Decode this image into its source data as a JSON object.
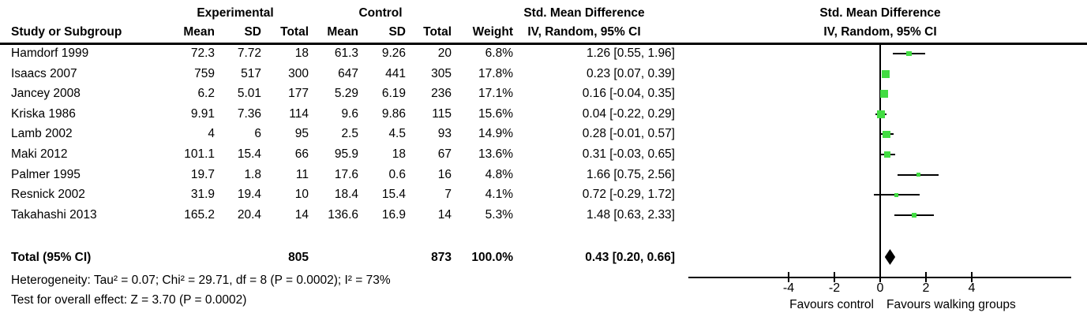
{
  "table": {
    "group_headers": {
      "experimental": "Experimental",
      "control": "Control",
      "smd_left": "Std. Mean Difference",
      "smd_right": "Std. Mean Difference"
    },
    "col_headers": {
      "study": "Study or Subgroup",
      "mean": "Mean",
      "sd": "SD",
      "total": "Total",
      "mean2": "Mean",
      "sd2": "SD",
      "total2": "Total",
      "weight": "Weight",
      "ci_left": "IV, Random, 95% CI",
      "ci_right": "IV, Random, 95% CI"
    }
  },
  "chart_data": {
    "type": "forest",
    "effect_measure": "Std. Mean Difference",
    "method": "IV, Random, 95% CI",
    "marker_color": "#42DC42",
    "axis": {
      "ticks": [
        -4,
        -2,
        0,
        2,
        4
      ],
      "xlim": [
        -8.4,
        8.3
      ],
      "favours_left": "Favours control",
      "favours_right": "Favours walking groups"
    },
    "studies": [
      {
        "name": "Hamdorf 1999",
        "exp_mean": "72.3",
        "exp_sd": "7.72",
        "exp_total": "18",
        "ctl_mean": "61.3",
        "ctl_sd": "9.26",
        "ctl_total": "20",
        "weight": "6.8%",
        "ci": "1.26 [0.55, 1.96]",
        "est": 1.26,
        "lo": 0.55,
        "hi": 1.96,
        "weight_pct": 6.8
      },
      {
        "name": "Isaacs 2007",
        "exp_mean": "759",
        "exp_sd": "517",
        "exp_total": "300",
        "ctl_mean": "647",
        "ctl_sd": "441",
        "ctl_total": "305",
        "weight": "17.8%",
        "ci": "0.23 [0.07, 0.39]",
        "est": 0.23,
        "lo": 0.07,
        "hi": 0.39,
        "weight_pct": 17.8
      },
      {
        "name": "Jancey 2008",
        "exp_mean": "6.2",
        "exp_sd": "5.01",
        "exp_total": "177",
        "ctl_mean": "5.29",
        "ctl_sd": "6.19",
        "ctl_total": "236",
        "weight": "17.1%",
        "ci": "0.16 [-0.04, 0.35]",
        "est": 0.16,
        "lo": -0.04,
        "hi": 0.35,
        "weight_pct": 17.1
      },
      {
        "name": "Kriska 1986",
        "exp_mean": "9.91",
        "exp_sd": "7.36",
        "exp_total": "114",
        "ctl_mean": "9.6",
        "ctl_sd": "9.86",
        "ctl_total": "115",
        "weight": "15.6%",
        "ci": "0.04 [-0.22, 0.29]",
        "est": 0.04,
        "lo": -0.22,
        "hi": 0.29,
        "weight_pct": 15.6
      },
      {
        "name": "Lamb 2002",
        "exp_mean": "4",
        "exp_sd": "6",
        "exp_total": "95",
        "ctl_mean": "2.5",
        "ctl_sd": "4.5",
        "ctl_total": "93",
        "weight": "14.9%",
        "ci": "0.28 [-0.01, 0.57]",
        "est": 0.28,
        "lo": -0.01,
        "hi": 0.57,
        "weight_pct": 14.9
      },
      {
        "name": "Maki 2012",
        "exp_mean": "101.1",
        "exp_sd": "15.4",
        "exp_total": "66",
        "ctl_mean": "95.9",
        "ctl_sd": "18",
        "ctl_total": "67",
        "weight": "13.6%",
        "ci": "0.31 [-0.03, 0.65]",
        "est": 0.31,
        "lo": -0.03,
        "hi": 0.65,
        "weight_pct": 13.6
      },
      {
        "name": "Palmer 1995",
        "exp_mean": "19.7",
        "exp_sd": "1.8",
        "exp_total": "11",
        "ctl_mean": "17.6",
        "ctl_sd": "0.6",
        "ctl_total": "16",
        "weight": "4.8%",
        "ci": "1.66 [0.75, 2.56]",
        "est": 1.66,
        "lo": 0.75,
        "hi": 2.56,
        "weight_pct": 4.8
      },
      {
        "name": "Resnick 2002",
        "exp_mean": "31.9",
        "exp_sd": "19.4",
        "exp_total": "10",
        "ctl_mean": "18.4",
        "ctl_sd": "15.4",
        "ctl_total": "7",
        "weight": "4.1%",
        "ci": "0.72 [-0.29, 1.72]",
        "est": 0.72,
        "lo": -0.29,
        "hi": 1.72,
        "weight_pct": 4.1
      },
      {
        "name": "Takahashi 2013",
        "exp_mean": "165.2",
        "exp_sd": "20.4",
        "exp_total": "14",
        "ctl_mean": "136.6",
        "ctl_sd": "16.9",
        "ctl_total": "14",
        "weight": "5.3%",
        "ci": "1.48 [0.63, 2.33]",
        "est": 1.48,
        "lo": 0.63,
        "hi": 2.33,
        "weight_pct": 5.3
      }
    ],
    "total": {
      "label": "Total (95% CI)",
      "exp_total": "805",
      "ctl_total": "873",
      "weight": "100.0%",
      "ci": "0.43 [0.20, 0.66]",
      "est": 0.43,
      "lo": 0.2,
      "hi": 0.66
    },
    "heterogeneity": "Heterogeneity: Tau² = 0.07; Chi² = 29.71, df = 8 (P = 0.0002); I² = 73%",
    "overall_effect": "Test for overall effect: Z = 3.70 (P = 0.0002)"
  }
}
